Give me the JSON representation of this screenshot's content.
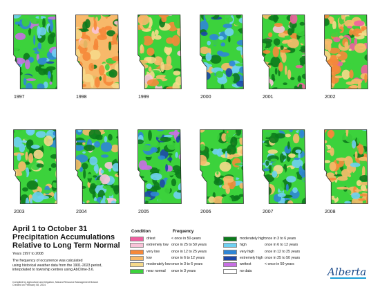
{
  "years": [
    "1997",
    "1998",
    "1999",
    "2000",
    "2001",
    "2002",
    "2003",
    "2004",
    "2005",
    "2006",
    "2007",
    "2008"
  ],
  "colors": {
    "driest": "#ef5fa0",
    "extremely_low": "#f9c3d8",
    "very_low": "#f5883a",
    "low": "#f7b96a",
    "moderately_low": "#f6d98a",
    "near_normal": "#3cd23c",
    "moderately_high": "#0c7a1c",
    "high": "#6fd0f2",
    "very_high": "#2f86d6",
    "extremely_high": "#1c47a8",
    "wettest": "#c86fe4",
    "no_data": "#ffffff"
  },
  "title": {
    "line1": "April 1 to October 31",
    "line2": "Precipitation Accumulations",
    "line3": "Relative to Long Term Normal"
  },
  "years_range": "Years 1997 to 2008",
  "description": {
    "line1": "The frequency of occurrence was calculated",
    "line2": "using historical weather data from the 1901-2023 period,",
    "line3": "interpolated to township centres using AbClime-3.6."
  },
  "credits": {
    "line1": "Compiled by Agriculture and Irrigation, Natural Resource Management Branch",
    "line2": "Created on February 08, 2024"
  },
  "legend": {
    "condition_header": "Condition",
    "frequency_header": "Frequency",
    "left": [
      {
        "label": "driest",
        "freq": "< once in 50-years",
        "color": "#ef5fa0"
      },
      {
        "label": "extremely low",
        "freq": "once in 25 to 50 years",
        "color": "#f9c3d8"
      },
      {
        "label": "very low",
        "freq": "once in 12 to 25 years",
        "color": "#f5883a"
      },
      {
        "label": "low",
        "freq": "once in 6 to 12 years",
        "color": "#f7b96a"
      },
      {
        "label": "moderately low",
        "freq": "once in 3 to 6 years",
        "color": "#f6d98a"
      },
      {
        "label": "near normal",
        "freq": "once in 3 years",
        "color": "#3cd23c"
      }
    ],
    "right": [
      {
        "label": "moderately high",
        "freq": "once in 3 to 6 years",
        "color": "#0c7a1c"
      },
      {
        "label": "high",
        "freq": "once in 6 to 12 years",
        "color": "#6fd0f2"
      },
      {
        "label": "very high",
        "freq": "once in 12 to 25 years",
        "color": "#2f86d6"
      },
      {
        "label": "extremely high",
        "freq": "once in 25 to 50 years",
        "color": "#1c47a8"
      },
      {
        "label": "wettest",
        "freq": "< once in 50-years",
        "color": "#c86fe4"
      },
      {
        "label": "no data",
        "freq": "",
        "color": "#ffffff"
      }
    ]
  },
  "logo": {
    "text": "Alberta"
  }
}
